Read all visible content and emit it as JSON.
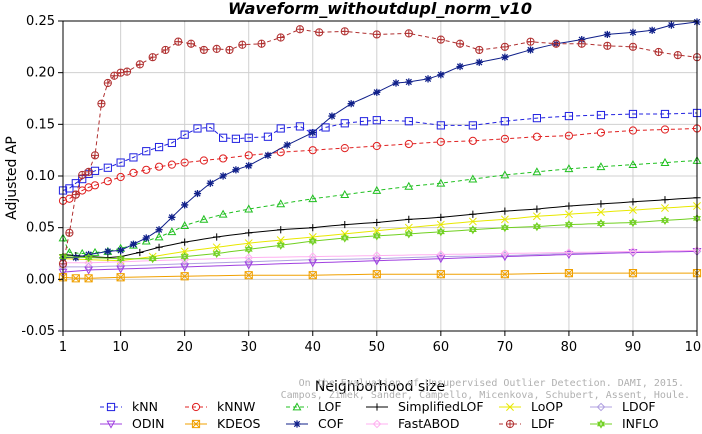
{
  "chart_data": {
    "type": "line",
    "title": "Waveform_withoutdupl_norm_v10",
    "xlabel": "Neighborhood size",
    "ylabel": "Adjusted AP",
    "xlim": [
      1,
      100
    ],
    "ylim": [
      -0.05,
      0.25
    ],
    "x_ticks": [
      1,
      10,
      20,
      30,
      40,
      50,
      60,
      70,
      80,
      90,
      100
    ],
    "y_ticks": [
      "-0.05",
      "0.00",
      "0.05",
      "0.10",
      "0.15",
      "0.20",
      "0.25"
    ],
    "grid": true,
    "legend_position": "bottom",
    "watermark": "Campos, Zimek, Sander, Campello, Micenkova, Schubert, Assent, Houle. On the Evaluation of Unsupervised Outlier Detection. DAMI, 2015.",
    "series": [
      {
        "name": "kNN",
        "color": "#2020e0",
        "marker": "square",
        "dash": true,
        "points": [
          [
            1,
            0.086
          ],
          [
            2,
            0.088
          ],
          [
            3,
            0.093
          ],
          [
            4,
            0.097
          ],
          [
            5,
            0.102
          ],
          [
            6,
            0.105
          ],
          [
            8,
            0.108
          ],
          [
            10,
            0.113
          ],
          [
            12,
            0.118
          ],
          [
            14,
            0.124
          ],
          [
            16,
            0.128
          ],
          [
            18,
            0.132
          ],
          [
            20,
            0.14
          ],
          [
            22,
            0.146
          ],
          [
            24,
            0.147
          ],
          [
            26,
            0.137
          ],
          [
            28,
            0.136
          ],
          [
            30,
            0.137
          ],
          [
            33,
            0.138
          ],
          [
            35,
            0.146
          ],
          [
            38,
            0.148
          ],
          [
            40,
            0.141
          ],
          [
            42,
            0.147
          ],
          [
            45,
            0.151
          ],
          [
            48,
            0.153
          ],
          [
            50,
            0.154
          ],
          [
            55,
            0.153
          ],
          [
            60,
            0.149
          ],
          [
            65,
            0.149
          ],
          [
            70,
            0.153
          ],
          [
            75,
            0.156
          ],
          [
            80,
            0.158
          ],
          [
            85,
            0.159
          ],
          [
            90,
            0.16
          ],
          [
            95,
            0.16
          ],
          [
            100,
            0.161
          ]
        ]
      },
      {
        "name": "kNNW",
        "color": "#e02020",
        "marker": "circle",
        "dash": true,
        "points": [
          [
            1,
            0.076
          ],
          [
            2,
            0.078
          ],
          [
            3,
            0.082
          ],
          [
            4,
            0.086
          ],
          [
            5,
            0.089
          ],
          [
            6,
            0.091
          ],
          [
            8,
            0.095
          ],
          [
            10,
            0.099
          ],
          [
            12,
            0.103
          ],
          [
            14,
            0.106
          ],
          [
            16,
            0.109
          ],
          [
            18,
            0.111
          ],
          [
            20,
            0.113
          ],
          [
            23,
            0.115
          ],
          [
            26,
            0.117
          ],
          [
            30,
            0.12
          ],
          [
            35,
            0.123
          ],
          [
            40,
            0.125
          ],
          [
            45,
            0.127
          ],
          [
            50,
            0.129
          ],
          [
            55,
            0.131
          ],
          [
            60,
            0.133
          ],
          [
            65,
            0.134
          ],
          [
            70,
            0.136
          ],
          [
            75,
            0.138
          ],
          [
            80,
            0.139
          ],
          [
            85,
            0.142
          ],
          [
            90,
            0.144
          ],
          [
            95,
            0.145
          ],
          [
            100,
            0.146
          ]
        ]
      },
      {
        "name": "LOF",
        "color": "#20c020",
        "marker": "triangle",
        "dash": true,
        "points": [
          [
            1,
            0.04
          ],
          [
            2,
            0.026
          ],
          [
            4,
            0.025
          ],
          [
            6,
            0.026
          ],
          [
            8,
            0.027
          ],
          [
            10,
            0.03
          ],
          [
            12,
            0.033
          ],
          [
            14,
            0.037
          ],
          [
            16,
            0.041
          ],
          [
            18,
            0.046
          ],
          [
            20,
            0.052
          ],
          [
            23,
            0.058
          ],
          [
            26,
            0.063
          ],
          [
            30,
            0.068
          ],
          [
            35,
            0.073
          ],
          [
            40,
            0.078
          ],
          [
            45,
            0.082
          ],
          [
            50,
            0.086
          ],
          [
            55,
            0.09
          ],
          [
            60,
            0.093
          ],
          [
            65,
            0.097
          ],
          [
            70,
            0.101
          ],
          [
            75,
            0.104
          ],
          [
            80,
            0.107
          ],
          [
            85,
            0.109
          ],
          [
            90,
            0.111
          ],
          [
            95,
            0.113
          ],
          [
            100,
            0.115
          ]
        ]
      },
      {
        "name": "SimplifiedLOF",
        "color": "#000000",
        "marker": "plus",
        "dash": false,
        "points": [
          [
            1,
            0.024
          ],
          [
            3,
            0.023
          ],
          [
            5,
            0.022
          ],
          [
            8,
            0.021
          ],
          [
            10,
            0.022
          ],
          [
            13,
            0.026
          ],
          [
            16,
            0.031
          ],
          [
            20,
            0.036
          ],
          [
            25,
            0.041
          ],
          [
            30,
            0.045
          ],
          [
            35,
            0.048
          ],
          [
            40,
            0.05
          ],
          [
            45,
            0.053
          ],
          [
            50,
            0.055
          ],
          [
            55,
            0.058
          ],
          [
            60,
            0.06
          ],
          [
            65,
            0.063
          ],
          [
            70,
            0.066
          ],
          [
            75,
            0.068
          ],
          [
            80,
            0.071
          ],
          [
            85,
            0.073
          ],
          [
            90,
            0.075
          ],
          [
            95,
            0.077
          ],
          [
            100,
            0.079
          ]
        ]
      },
      {
        "name": "LoOP",
        "color": "#e8e800",
        "marker": "x",
        "dash": false,
        "points": [
          [
            1,
            0.02
          ],
          [
            5,
            0.019
          ],
          [
            10,
            0.018
          ],
          [
            15,
            0.022
          ],
          [
            20,
            0.027
          ],
          [
            25,
            0.031
          ],
          [
            30,
            0.035
          ],
          [
            35,
            0.038
          ],
          [
            40,
            0.041
          ],
          [
            45,
            0.044
          ],
          [
            50,
            0.047
          ],
          [
            55,
            0.05
          ],
          [
            60,
            0.053
          ],
          [
            65,
            0.056
          ],
          [
            70,
            0.058
          ],
          [
            75,
            0.061
          ],
          [
            80,
            0.063
          ],
          [
            85,
            0.065
          ],
          [
            90,
            0.067
          ],
          [
            95,
            0.069
          ],
          [
            100,
            0.071
          ]
        ]
      },
      {
        "name": "LDOF",
        "color": "#b0a0e0",
        "marker": "diamond",
        "dash": false,
        "points": [
          [
            1,
            0.012
          ],
          [
            5,
            0.012
          ],
          [
            10,
            0.013
          ],
          [
            20,
            0.015
          ],
          [
            30,
            0.017
          ],
          [
            40,
            0.019
          ],
          [
            50,
            0.02
          ],
          [
            60,
            0.022
          ],
          [
            70,
            0.023
          ],
          [
            80,
            0.025
          ],
          [
            90,
            0.026
          ],
          [
            100,
            0.027
          ]
        ]
      },
      {
        "name": "ODIN",
        "color": "#a040e0",
        "marker": "triangle-down",
        "dash": false,
        "points": [
          [
            1,
            0.007
          ],
          [
            5,
            0.009
          ],
          [
            10,
            0.01
          ],
          [
            20,
            0.012
          ],
          [
            30,
            0.014
          ],
          [
            40,
            0.016
          ],
          [
            50,
            0.018
          ],
          [
            60,
            0.02
          ],
          [
            70,
            0.022
          ],
          [
            80,
            0.024
          ],
          [
            90,
            0.026
          ],
          [
            100,
            0.027
          ]
        ]
      },
      {
        "name": "KDEOS",
        "color": "#f0a000",
        "marker": "square-x",
        "dash": false,
        "points": [
          [
            1,
            0.002
          ],
          [
            3,
            0.001
          ],
          [
            5,
            0.001
          ],
          [
            10,
            0.002
          ],
          [
            20,
            0.003
          ],
          [
            30,
            0.004
          ],
          [
            40,
            0.004
          ],
          [
            50,
            0.005
          ],
          [
            60,
            0.005
          ],
          [
            70,
            0.005
          ],
          [
            80,
            0.006
          ],
          [
            90,
            0.006
          ],
          [
            100,
            0.006
          ]
        ]
      },
      {
        "name": "COF",
        "color": "#10208a",
        "marker": "star",
        "dash": false,
        "points": [
          [
            1,
            0.021
          ],
          [
            3,
            0.021
          ],
          [
            5,
            0.024
          ],
          [
            8,
            0.027
          ],
          [
            10,
            0.028
          ],
          [
            12,
            0.034
          ],
          [
            14,
            0.04
          ],
          [
            16,
            0.048
          ],
          [
            18,
            0.06
          ],
          [
            20,
            0.072
          ],
          [
            22,
            0.083
          ],
          [
            24,
            0.093
          ],
          [
            26,
            0.1
          ],
          [
            28,
            0.106
          ],
          [
            30,
            0.11
          ],
          [
            33,
            0.12
          ],
          [
            36,
            0.13
          ],
          [
            40,
            0.142
          ],
          [
            43,
            0.158
          ],
          [
            46,
            0.17
          ],
          [
            50,
            0.181
          ],
          [
            53,
            0.19
          ],
          [
            55,
            0.191
          ],
          [
            58,
            0.194
          ],
          [
            60,
            0.198
          ],
          [
            63,
            0.206
          ],
          [
            66,
            0.21
          ],
          [
            70,
            0.215
          ],
          [
            74,
            0.222
          ],
          [
            78,
            0.228
          ],
          [
            82,
            0.232
          ],
          [
            86,
            0.237
          ],
          [
            90,
            0.239
          ],
          [
            93,
            0.241
          ],
          [
            96,
            0.246
          ],
          [
            100,
            0.249
          ]
        ]
      },
      {
        "name": "FastABOD",
        "color": "#ffb0f0",
        "marker": "diamond",
        "dash": false,
        "points": [
          [
            1,
            0.016
          ],
          [
            5,
            0.016
          ],
          [
            10,
            0.017
          ],
          [
            20,
            0.019
          ],
          [
            30,
            0.021
          ],
          [
            40,
            0.022
          ],
          [
            50,
            0.023
          ],
          [
            60,
            0.024
          ],
          [
            70,
            0.025
          ],
          [
            80,
            0.026
          ],
          [
            90,
            0.027
          ],
          [
            100,
            0.028
          ]
        ]
      },
      {
        "name": "LDF",
        "color": "#b03030",
        "marker": "circle-plus",
        "dash": true,
        "points": [
          [
            1,
            0.015
          ],
          [
            2,
            0.045
          ],
          [
            3,
            0.082
          ],
          [
            4,
            0.101
          ],
          [
            5,
            0.104
          ],
          [
            6,
            0.12
          ],
          [
            7,
            0.17
          ],
          [
            8,
            0.19
          ],
          [
            9,
            0.197
          ],
          [
            10,
            0.2
          ],
          [
            11,
            0.201
          ],
          [
            13,
            0.208
          ],
          [
            15,
            0.215
          ],
          [
            17,
            0.222
          ],
          [
            19,
            0.23
          ],
          [
            21,
            0.228
          ],
          [
            23,
            0.222
          ],
          [
            25,
            0.223
          ],
          [
            27,
            0.222
          ],
          [
            29,
            0.227
          ],
          [
            32,
            0.228
          ],
          [
            35,
            0.234
          ],
          [
            38,
            0.242
          ],
          [
            41,
            0.239
          ],
          [
            45,
            0.24
          ],
          [
            50,
            0.237
          ],
          [
            55,
            0.238
          ],
          [
            60,
            0.232
          ],
          [
            63,
            0.228
          ],
          [
            66,
            0.222
          ],
          [
            70,
            0.225
          ],
          [
            74,
            0.23
          ],
          [
            78,
            0.228
          ],
          [
            82,
            0.228
          ],
          [
            86,
            0.226
          ],
          [
            90,
            0.225
          ],
          [
            94,
            0.22
          ],
          [
            97,
            0.217
          ],
          [
            100,
            0.215
          ]
        ]
      },
      {
        "name": "INFLO",
        "color": "#70d020",
        "marker": "hexagram",
        "dash": false,
        "points": [
          [
            1,
            0.022
          ],
          [
            5,
            0.021
          ],
          [
            10,
            0.02
          ],
          [
            15,
            0.02
          ],
          [
            20,
            0.022
          ],
          [
            25,
            0.025
          ],
          [
            30,
            0.029
          ],
          [
            35,
            0.033
          ],
          [
            40,
            0.037
          ],
          [
            45,
            0.04
          ],
          [
            50,
            0.042
          ],
          [
            55,
            0.044
          ],
          [
            60,
            0.046
          ],
          [
            65,
            0.048
          ],
          [
            70,
            0.05
          ],
          [
            75,
            0.051
          ],
          [
            80,
            0.053
          ],
          [
            85,
            0.054
          ],
          [
            90,
            0.055
          ],
          [
            95,
            0.057
          ],
          [
            100,
            0.059
          ]
        ]
      }
    ]
  }
}
